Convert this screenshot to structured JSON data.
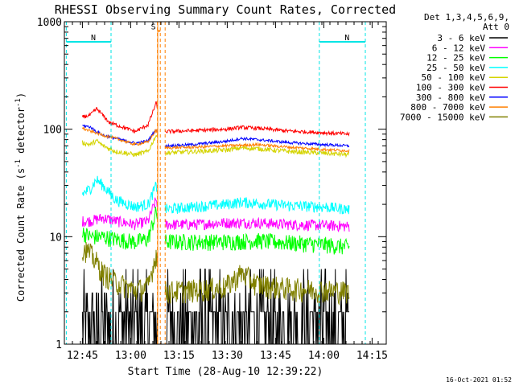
{
  "chart_data": {
    "type": "line",
    "title": "RHESSI Observing Summary Count Rates, Corrected",
    "xlabel": "Start Time (28-Aug-10 12:39:22)",
    "ylabel": "Corrected Count Rate (s",
    "ylabel_sup": "-1",
    "ylabel_mid": " detector",
    "ylabel_end": ")",
    "y_scale": "log",
    "ylim": [
      1,
      1000
    ],
    "xlim_minutes": [
      0,
      100
    ],
    "x_tick_labels": [
      "12:45",
      "13:00",
      "13:15",
      "13:30",
      "13:45",
      "14:00",
      "14:15"
    ],
    "x_tick_minutes": [
      5.6,
      20.6,
      35.6,
      50.6,
      65.6,
      80.6,
      95.6
    ],
    "y_tick_labels": [
      "1",
      "10",
      "100",
      "1000"
    ],
    "y_tick_values": [
      1,
      10,
      100,
      1000
    ],
    "legend_header": [
      "Det 1,3,4,5,6,9,",
      "Att 0"
    ],
    "legend_placement": "right",
    "timestamp": "16-Oct-2021 01:52",
    "data_gap_minutes": [
      29.0,
      31.3
    ],
    "flags": [
      {
        "label": "N",
        "color": "#00e5e5",
        "start": 0.6,
        "end": 14.5,
        "level": 650
      },
      {
        "label": "N",
        "color": "#00e5e5",
        "start": 79.2,
        "end": 93.5,
        "level": 650
      },
      {
        "label": "S",
        "color": "#ff7f00",
        "start": 28.9,
        "end": 29.8,
        "level": 820
      }
    ],
    "series": [
      {
        "name": "3 - 6 keV",
        "color": "#000000",
        "x": [
          5.6,
          10,
          14,
          20,
          26,
          28.5,
          31.3,
          40,
          50,
          60,
          70,
          80,
          88.5
        ],
        "y": [
          1.2,
          1.8,
          1.4,
          1.6,
          1.3,
          1.1,
          1.5,
          1.3,
          1.4,
          1.5,
          1.3,
          1.4,
          1.3
        ]
      },
      {
        "name": "6 - 12 keV",
        "color": "#ff00ff",
        "x": [
          5.6,
          8,
          12,
          16,
          22,
          26,
          28.5,
          31.3,
          40,
          50,
          60,
          70,
          80,
          88.5
        ],
        "y": [
          14,
          14,
          15,
          14,
          13,
          14,
          22,
          13,
          13,
          13.5,
          13.5,
          13,
          12.8,
          12.5
        ]
      },
      {
        "name": "12 - 25 keV",
        "color": "#00ff00",
        "x": [
          5.6,
          8,
          12,
          16,
          22,
          26,
          28.5,
          31.3,
          40,
          50,
          60,
          70,
          80,
          88.5
        ],
        "y": [
          11,
          10,
          10,
          9.5,
          9,
          9.5,
          17,
          9,
          9,
          9,
          9.2,
          8.8,
          8.5,
          8
        ]
      },
      {
        "name": "25 - 50 keV",
        "color": "#00ffff",
        "x": [
          5.6,
          8,
          10,
          12,
          16,
          22,
          26,
          28.5,
          31.3,
          40,
          50,
          55,
          60,
          70,
          80,
          88.5
        ],
        "y": [
          25,
          28,
          34,
          30,
          22,
          19,
          20,
          30,
          18,
          19,
          20,
          21,
          20.5,
          19.5,
          19,
          18
        ]
      },
      {
        "name": "50 - 100 keV",
        "color": "#d4d400",
        "x": [
          5.6,
          8,
          10,
          12,
          16,
          22,
          26,
          28.5,
          31.3,
          40,
          50,
          55,
          60,
          70,
          80,
          88.5
        ],
        "y": [
          75,
          72,
          78,
          70,
          62,
          58,
          62,
          88,
          60,
          62,
          64,
          67,
          66,
          62,
          60,
          58
        ]
      },
      {
        "name": "100 - 300 keV",
        "color": "#ff0000",
        "x": [
          5.6,
          8,
          10,
          11,
          14,
          18,
          22,
          26,
          28.5,
          31.3,
          40,
          50,
          55,
          60,
          70,
          80,
          88.5
        ],
        "y": [
          130,
          135,
          155,
          145,
          115,
          105,
          95,
          110,
          175,
          95,
          97,
          100,
          104,
          102,
          96,
          93,
          90
        ]
      },
      {
        "name": "300 - 800 keV",
        "color": "#0000ff",
        "x": [
          5.6,
          8,
          10,
          12,
          16,
          22,
          26,
          28.5,
          31.3,
          40,
          50,
          55,
          60,
          70,
          80,
          88.5
        ],
        "y": [
          108,
          105,
          95,
          88,
          82,
          74,
          78,
          100,
          70,
          72,
          77,
          82,
          80,
          75,
          72,
          70
        ]
      },
      {
        "name": "800 - 7000 keV",
        "color": "#ff7f00",
        "x": [
          5.6,
          8,
          12,
          16,
          22,
          26,
          28.5,
          31.3,
          40,
          50,
          60,
          70,
          80,
          88.5
        ],
        "y": [
          102,
          96,
          88,
          82,
          72,
          76,
          98,
          67,
          68,
          70,
          72,
          68,
          65,
          63
        ]
      },
      {
        "name": "7000 - 15000 keV",
        "color": "#808000",
        "x": [
          5.6,
          8,
          10,
          12,
          16,
          22,
          26,
          28.5,
          31.3,
          40,
          50,
          55,
          60,
          70,
          80,
          88.5
        ],
        "y": [
          8,
          7,
          5.8,
          4.6,
          3.8,
          3.2,
          3.4,
          7,
          3.1,
          3.2,
          3.4,
          4.6,
          3.6,
          3.3,
          3.2,
          3.1
        ]
      }
    ]
  }
}
